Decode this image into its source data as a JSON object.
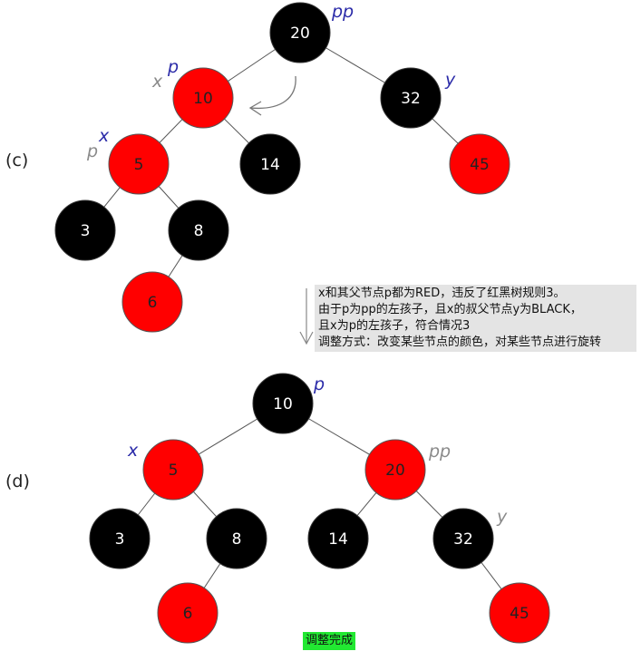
{
  "panels": {
    "c": "(c)",
    "d": "(d)"
  },
  "colors": {
    "red": "#ff0000",
    "black": "#000000",
    "blue_label": "#2a2aa8",
    "gray_label": "#8a8a8a",
    "done_bg": "#22e832"
  },
  "tree_c": {
    "nodes": [
      {
        "key": "20",
        "color": "black"
      },
      {
        "key": "10",
        "color": "red"
      },
      {
        "key": "32",
        "color": "black"
      },
      {
        "key": "5",
        "color": "red"
      },
      {
        "key": "14",
        "color": "black"
      },
      {
        "key": "45",
        "color": "red"
      },
      {
        "key": "3",
        "color": "black"
      },
      {
        "key": "8",
        "color": "black"
      },
      {
        "key": "6",
        "color": "red"
      }
    ],
    "edges": [
      [
        "20",
        "10"
      ],
      [
        "20",
        "32"
      ],
      [
        "10",
        "5"
      ],
      [
        "10",
        "14"
      ],
      [
        "32",
        "45"
      ],
      [
        "5",
        "3"
      ],
      [
        "5",
        "8"
      ],
      [
        "8",
        "6"
      ]
    ],
    "labels": {
      "pp": "pp",
      "p_on_10": "p",
      "x_on_10": "x",
      "y": "y",
      "x_on_5": "x",
      "p_on_5": "p"
    }
  },
  "tree_d": {
    "nodes": [
      {
        "key": "10",
        "color": "black"
      },
      {
        "key": "5",
        "color": "red"
      },
      {
        "key": "20",
        "color": "red"
      },
      {
        "key": "3",
        "color": "black"
      },
      {
        "key": "8",
        "color": "black"
      },
      {
        "key": "14",
        "color": "black"
      },
      {
        "key": "32",
        "color": "black"
      },
      {
        "key": "6",
        "color": "red"
      },
      {
        "key": "45",
        "color": "red"
      }
    ],
    "edges": [
      [
        "10",
        "5"
      ],
      [
        "10",
        "20"
      ],
      [
        "5",
        "3"
      ],
      [
        "5",
        "8"
      ],
      [
        "20",
        "14"
      ],
      [
        "20",
        "32"
      ],
      [
        "8",
        "6"
      ],
      [
        "32",
        "45"
      ]
    ],
    "labels": {
      "p": "p",
      "x": "x",
      "pp": "pp",
      "y": "y"
    }
  },
  "note": {
    "lines": [
      "x和其父节点p都为RED，违反了红黑树规则3。",
      "由于p为pp的左孩子，且x的叔父节点y为BLACK，",
      "且x为p的左孩子，符合情况3",
      "调整方式：改变某些节点的颜色，对某些节点进行旋转"
    ]
  },
  "done_label": "调整完成"
}
